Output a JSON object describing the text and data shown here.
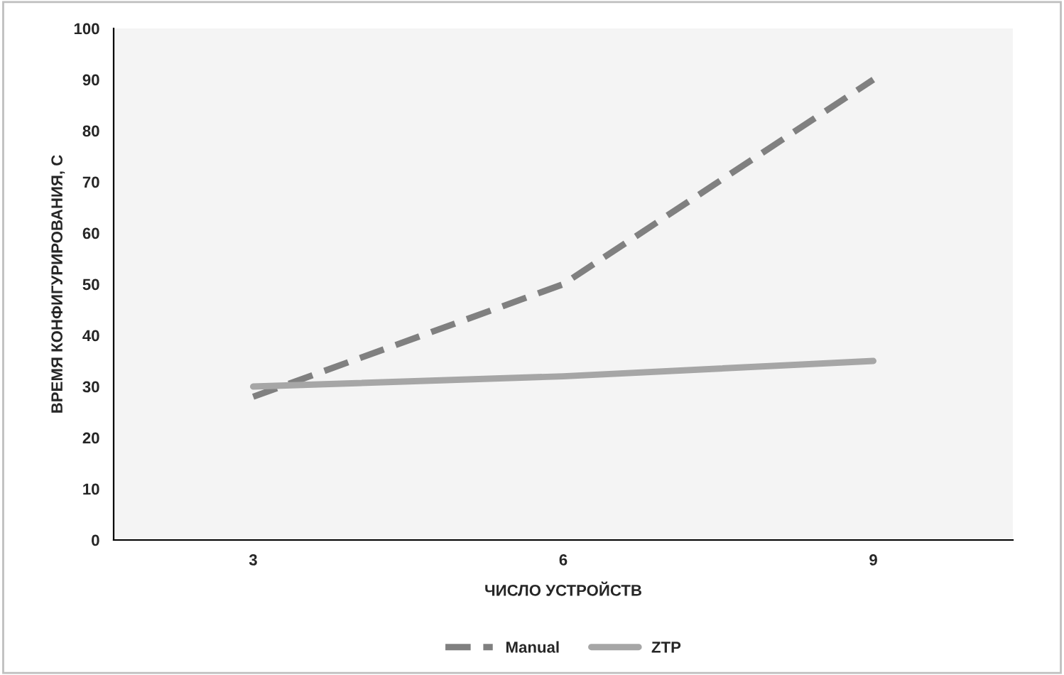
{
  "chart_data": {
    "type": "line",
    "xlabel": "ЧИСЛО УСТРОЙСТВ",
    "ylabel": "ВРЕМЯ КОНФИГУРИРОВАНИЯ, С",
    "categories": [
      "3",
      "6",
      "9"
    ],
    "series": [
      {
        "name": "Manual",
        "color": "#808080",
        "values": [
          28,
          50,
          90
        ],
        "line_style": "dashed"
      },
      {
        "name": "ZTP",
        "color": "#a6a6a6",
        "values": [
          30,
          32,
          35
        ],
        "line_style": "solid"
      }
    ],
    "ylim": [
      0,
      100
    ],
    "yticks": [
      0,
      10,
      20,
      30,
      40,
      50,
      60,
      70,
      80,
      90,
      100
    ],
    "grid": false,
    "legend": "bottom",
    "marker": "none"
  }
}
